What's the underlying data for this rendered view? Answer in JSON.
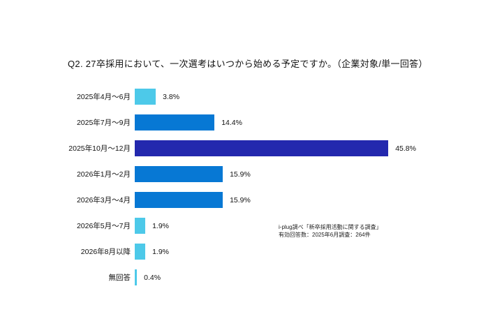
{
  "title": "Q2. 27卒採用において、一次選考はいつから始める予定ですか。（企業対象/単一回答）",
  "source_note": {
    "line1": "i-plug調べ「新卒採用活動に関する調査」",
    "line2": "有効回答数：2025年6月調査：264件"
  },
  "colors": {
    "background": "#ffffff",
    "bar_light_cyan": "#4DC9E9",
    "bar_medium_blue": "#0778D4",
    "bar_highlight_navy": "#2328AE",
    "text": "#111111"
  },
  "chart_data": {
    "type": "bar",
    "orientation": "horizontal",
    "title": "Q2. 27卒採用において、一次選考はいつから始める予定ですか。（企業対象/単一回答）",
    "categories": [
      "2025年4月～6月",
      "2025年7月～9月",
      "2025年10月～12月",
      "2026年1月～2月",
      "2026年3月～4月",
      "2026年5月～7月",
      "2026年8月以降",
      "無回答"
    ],
    "values": [
      3.8,
      14.4,
      45.8,
      15.9,
      15.9,
      1.9,
      1.9,
      0.4
    ],
    "value_labels": [
      "3.8%",
      "14.4%",
      "45.8%",
      "15.9%",
      "15.9%",
      "1.9%",
      "1.9%",
      "0.4%"
    ],
    "bar_colors": [
      "#4DC9E9",
      "#0778D4",
      "#2328AE",
      "#0778D4",
      "#0778D4",
      "#4DC9E9",
      "#4DC9E9",
      "#4DC9E9"
    ],
    "xlabel": "",
    "ylabel": "",
    "xlim": [
      0,
      50
    ],
    "grid": false,
    "legend": false,
    "data_labels": true
  }
}
